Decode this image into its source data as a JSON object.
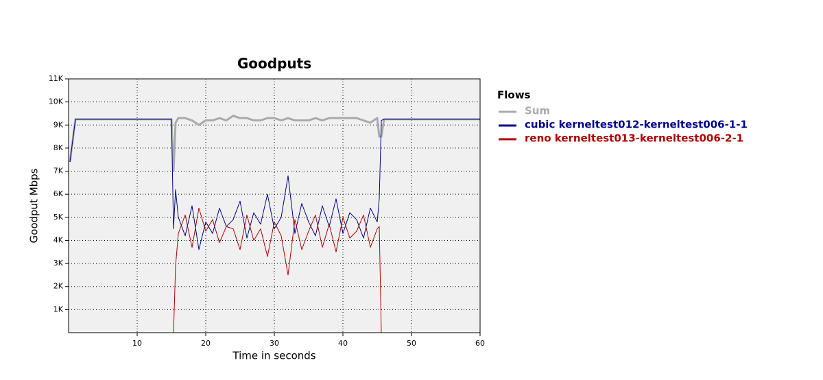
{
  "chart_data": {
    "type": "line",
    "title": "Goodputs",
    "x_label": "Time in seconds",
    "y_label": "Goodput Mbps",
    "legend_title": "Flows",
    "legend": "right",
    "grid": true,
    "xlim": [
      0,
      60
    ],
    "xticks": [
      10,
      20,
      30,
      40,
      50,
      60
    ],
    "ylim": [
      0,
      11000
    ],
    "yticks": [
      {
        "value": 1000,
        "label": "1K"
      },
      {
        "value": 2000,
        "label": "2K"
      },
      {
        "value": 3000,
        "label": "3K"
      },
      {
        "value": 4000,
        "label": "4K"
      },
      {
        "value": 5000,
        "label": "5K"
      },
      {
        "value": 6000,
        "label": "6K"
      },
      {
        "value": 7000,
        "label": "7K"
      },
      {
        "value": 8000,
        "label": "8K"
      },
      {
        "value": 9000,
        "label": "9K"
      },
      {
        "value": 10000,
        "label": "10K"
      },
      {
        "value": 11000,
        "label": "11K"
      }
    ],
    "x": [
      0.2,
      1,
      2,
      3,
      4,
      5,
      6,
      7,
      8,
      9,
      10,
      11,
      12,
      13,
      14,
      15,
      15.3,
      15.6,
      16,
      17,
      18,
      19,
      20,
      21,
      22,
      23,
      24,
      25,
      26,
      27,
      28,
      29,
      30,
      31,
      32,
      33,
      34,
      35,
      36,
      37,
      38,
      39,
      40,
      41,
      42,
      43,
      44,
      45,
      45.3,
      45.6,
      46,
      47,
      48,
      49,
      50,
      51,
      52,
      53,
      54,
      55,
      56,
      57,
      58,
      59,
      60
    ],
    "series": [
      {
        "name": "Sum",
        "color": "#aaaaaa",
        "width": 3,
        "values": [
          7400,
          9250,
          9250,
          9250,
          9250,
          9250,
          9250,
          9250,
          9250,
          9250,
          9250,
          9250,
          9250,
          9250,
          9250,
          9250,
          7000,
          9100,
          9300,
          9300,
          9200,
          9000,
          9200,
          9200,
          9300,
          9200,
          9400,
          9300,
          9300,
          9200,
          9200,
          9300,
          9300,
          9200,
          9300,
          9200,
          9200,
          9200,
          9300,
          9200,
          9300,
          9300,
          9300,
          9300,
          9300,
          9200,
          9100,
          9300,
          8500,
          8500,
          9250,
          9250,
          9250,
          9250,
          9250,
          9250,
          9250,
          9250,
          9250,
          9250,
          9250,
          9250,
          9250,
          9250,
          9250
        ]
      },
      {
        "name": "cubic kerneltest012-kerneltest006-1-1",
        "color": "#00008b",
        "width": 1,
        "values": [
          7400,
          9250,
          9250,
          9250,
          9250,
          9250,
          9250,
          9250,
          9250,
          9250,
          9250,
          9250,
          9250,
          9250,
          9250,
          9250,
          4500,
          6200,
          5000,
          4200,
          5500,
          3600,
          4800,
          4300,
          5400,
          4600,
          4900,
          5700,
          4100,
          5200,
          4700,
          6000,
          4500,
          5000,
          6800,
          4300,
          5600,
          4800,
          4200,
          5500,
          4600,
          5800,
          4300,
          5200,
          4900,
          4100,
          5400,
          4800,
          5800,
          9200,
          9250,
          9250,
          9250,
          9250,
          9250,
          9250,
          9250,
          9250,
          9250,
          9250,
          9250,
          9250,
          9250,
          9250,
          9250
        ]
      },
      {
        "name": "reno kerneltest013-kerneltest006-2-1",
        "color": "#b00000",
        "width": 1,
        "values": [
          0,
          0,
          0,
          0,
          0,
          0,
          0,
          0,
          0,
          0,
          0,
          0,
          0,
          0,
          0,
          0,
          0,
          2900,
          4300,
          5100,
          3700,
          5400,
          4400,
          4900,
          3900,
          4600,
          4500,
          3600,
          5100,
          4000,
          4500,
          3300,
          4800,
          4200,
          2500,
          4900,
          3600,
          4400,
          5100,
          3700,
          4700,
          3500,
          5000,
          4100,
          4400,
          5100,
          3700,
          4500,
          4600,
          0,
          0,
          0,
          0,
          0,
          0,
          0,
          0,
          0,
          0,
          0,
          0,
          0,
          0,
          0,
          0
        ]
      }
    ]
  }
}
